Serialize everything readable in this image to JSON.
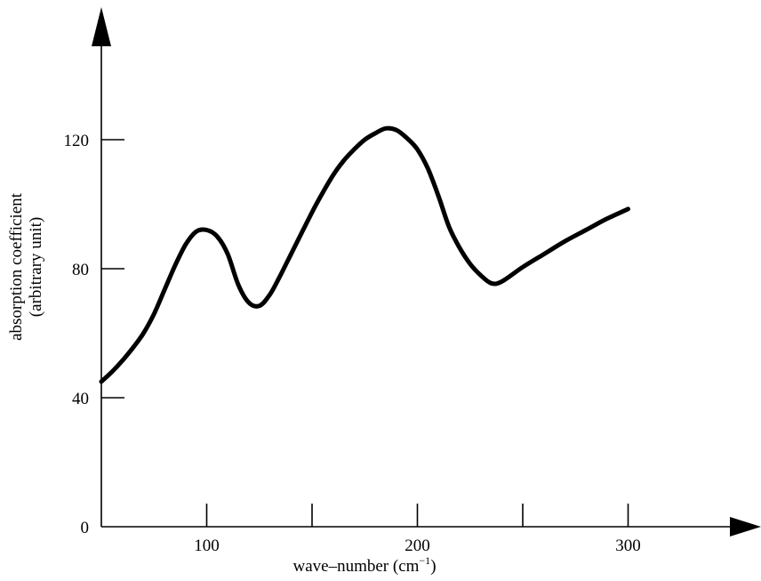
{
  "chart_data": {
    "type": "line",
    "xlabel": "wave–number (cm",
    "xlabel_sup": "−1",
    "xlabel_suffix": ")",
    "ylabel_line1": "absorption coefficient",
    "ylabel_line2": "(arbitrary unit)",
    "xlim": [
      50,
      350
    ],
    "ylim": [
      0,
      150
    ],
    "x_ticks": [
      100,
      150,
      200,
      250,
      300
    ],
    "x_tick_labels": [
      "100",
      "",
      "200",
      "",
      "300"
    ],
    "y_ticks": [
      0,
      40,
      80,
      120
    ],
    "y_tick_labels": [
      "0",
      "40",
      "80",
      "120"
    ],
    "grid": false,
    "line_color": "#000000",
    "series": [
      {
        "x": [
          50,
          55,
          60,
          65,
          70,
          75,
          80,
          85,
          90,
          95,
          100,
          105,
          110,
          115,
          120,
          125,
          130,
          135,
          140,
          145,
          150,
          155,
          160,
          165,
          170,
          175,
          180,
          185,
          190,
          195,
          200,
          205,
          210,
          215,
          220,
          225,
          230,
          235,
          240,
          250,
          260,
          270,
          280,
          290,
          300
        ],
        "y": [
          45,
          48,
          51.5,
          55.5,
          60,
          66,
          73.5,
          81,
          87.5,
          91.5,
          92,
          90,
          84.5,
          75,
          69.5,
          68.5,
          72,
          78,
          84.5,
          91,
          97.5,
          103.5,
          109,
          113.5,
          117,
          120,
          122,
          123.5,
          123,
          120.5,
          117,
          111,
          102.5,
          93,
          86.5,
          81.5,
          78,
          75.5,
          76,
          80.5,
          84.5,
          88.5,
          92,
          95.5,
          98.5
        ]
      }
    ]
  }
}
